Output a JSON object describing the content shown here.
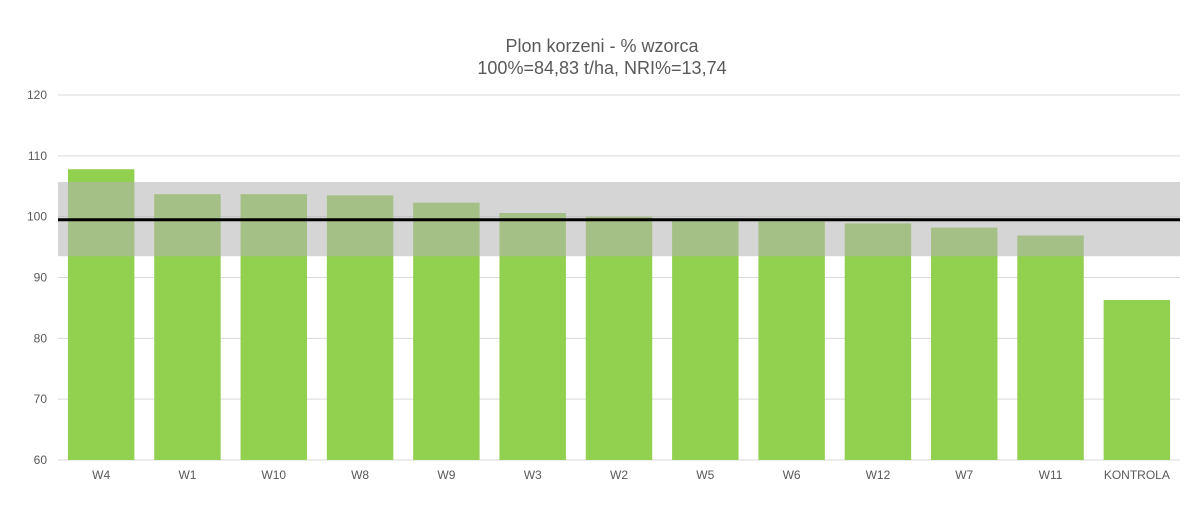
{
  "chart_data": {
    "type": "bar",
    "title": "Plon korzeni - % wzorca",
    "subtitle": "100%=84,83 t/ha, NRI%=13,74",
    "categories": [
      "W4",
      "W1",
      "W10",
      "W8",
      "W9",
      "W3",
      "W2",
      "W5",
      "W6",
      "W12",
      "W7",
      "W11",
      "KONTROLA"
    ],
    "values": [
      107.8,
      103.7,
      103.7,
      103.5,
      102.3,
      100.6,
      100.0,
      99.5,
      99.2,
      98.9,
      98.2,
      96.9,
      86.3
    ],
    "ylim": [
      60,
      120
    ],
    "yticks": [
      60,
      70,
      80,
      90,
      100,
      110,
      120
    ],
    "reference_line": 99.5,
    "nri_band": [
      93.5,
      105.7
    ],
    "grid": true,
    "xlabel": "",
    "ylabel": "",
    "colors": {
      "bar": "#92d050",
      "band": "#b3b3b3",
      "reference_line": "#000000",
      "grid": "#d9d9d9",
      "text": "#595959"
    }
  }
}
